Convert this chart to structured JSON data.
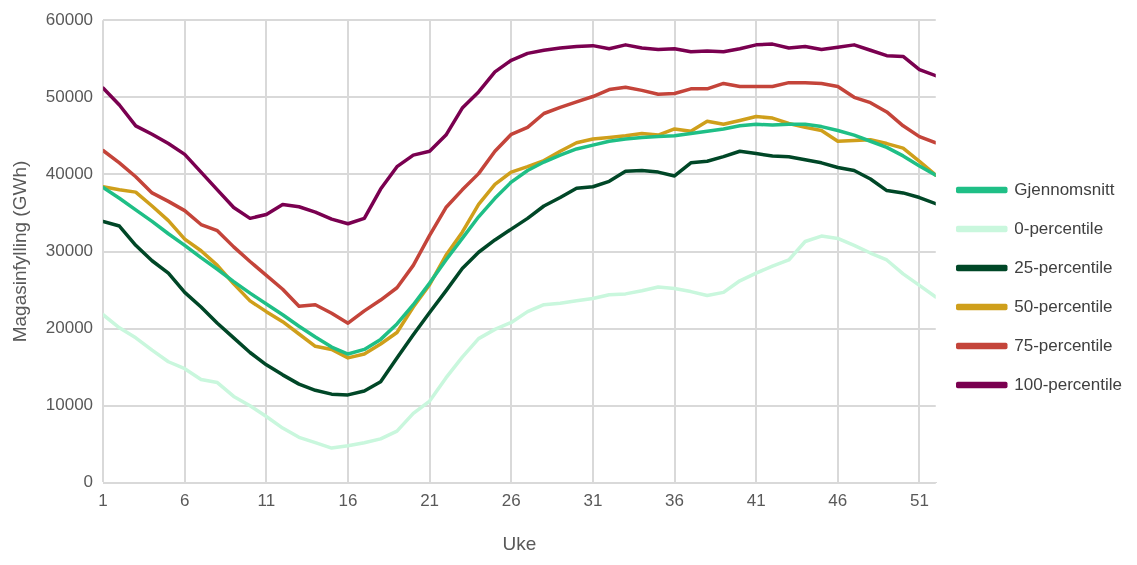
{
  "chart_data": {
    "type": "line",
    "xlabel": "Uke",
    "ylabel": "Magasinfylling (GWh)",
    "x": [
      1,
      2,
      3,
      4,
      5,
      6,
      7,
      8,
      9,
      10,
      11,
      12,
      13,
      14,
      15,
      16,
      17,
      18,
      19,
      20,
      21,
      22,
      23,
      24,
      25,
      26,
      27,
      28,
      29,
      30,
      31,
      32,
      33,
      34,
      35,
      36,
      37,
      38,
      39,
      40,
      41,
      42,
      43,
      44,
      45,
      46,
      47,
      48,
      49,
      50,
      51,
      52
    ],
    "xlim": [
      1,
      52
    ],
    "xticks": [
      1,
      6,
      11,
      16,
      21,
      26,
      31,
      36,
      41,
      46,
      51
    ],
    "ylim": [
      0,
      60000
    ],
    "yticks": [
      0,
      10000,
      20000,
      30000,
      40000,
      50000,
      60000
    ],
    "grid": true,
    "legend": "right",
    "marker": "none",
    "line_style": "solid",
    "series": [
      {
        "name": "Gjennomsnitt",
        "color": "#1fbf86",
        "values": [
          38300,
          36900,
          35400,
          33900,
          32300,
          30800,
          29200,
          27700,
          26100,
          24600,
          23200,
          21800,
          20300,
          18900,
          17600,
          16700,
          17300,
          18600,
          20600,
          23100,
          25900,
          28900,
          31700,
          34500,
          36900,
          39000,
          40500,
          41600,
          42500,
          43300,
          43800,
          44300,
          44600,
          44800,
          44900,
          45000,
          45300,
          45600,
          45900,
          46300,
          46500,
          46400,
          46500,
          46500,
          46200,
          45700,
          45100,
          44300,
          43500,
          42400,
          41100,
          39900
        ]
      },
      {
        "name": "0-percentile",
        "color": "#c9f7dd",
        "values": [
          21800,
          20100,
          18800,
          17200,
          15700,
          14800,
          13400,
          13000,
          11200,
          10000,
          8600,
          7100,
          5900,
          5200,
          4500,
          4800,
          5200,
          5700,
          6700,
          9000,
          10600,
          13600,
          16300,
          18700,
          19900,
          20800,
          22200,
          23100,
          23300,
          23600,
          23900,
          24400,
          24500,
          24900,
          25400,
          25200,
          24800,
          24300,
          24700,
          26200,
          27200,
          28100,
          28900,
          31300,
          32000,
          31700,
          30800,
          29800,
          28900,
          27100,
          25600,
          24100
        ]
      },
      {
        "name": "25-percentile",
        "color": "#004727",
        "values": [
          33900,
          33300,
          30800,
          28800,
          27200,
          24700,
          22800,
          20700,
          18800,
          16900,
          15300,
          14000,
          12800,
          12000,
          11500,
          11400,
          11900,
          13100,
          16200,
          19200,
          22100,
          24900,
          27800,
          29900,
          31500,
          32900,
          34300,
          35900,
          37000,
          38200,
          38400,
          39100,
          40400,
          40500,
          40300,
          39800,
          41500,
          41700,
          42300,
          43000,
          42700,
          42400,
          42300,
          41900,
          41500,
          40900,
          40500,
          39400,
          37900,
          37600,
          37000,
          36200
        ]
      },
      {
        "name": "50-percentile",
        "color": "#cf9f1b",
        "values": [
          38400,
          38000,
          37700,
          35900,
          34000,
          31600,
          30100,
          28200,
          25800,
          23600,
          22200,
          20900,
          19300,
          17700,
          17300,
          16200,
          16700,
          18000,
          19500,
          22800,
          25700,
          29500,
          32500,
          36100,
          38700,
          40300,
          41000,
          41800,
          43000,
          44100,
          44600,
          44800,
          45000,
          45300,
          45100,
          45900,
          45600,
          46900,
          46500,
          47000,
          47500,
          47300,
          46600,
          46100,
          45700,
          44300,
          44400,
          44500,
          44000,
          43400,
          41700,
          39900
        ]
      },
      {
        "name": "75-percentile",
        "color": "#c4443a",
        "values": [
          43100,
          41500,
          39700,
          37600,
          36500,
          35300,
          33500,
          32700,
          30600,
          28700,
          26900,
          25100,
          22900,
          23100,
          22000,
          20700,
          22300,
          23700,
          25300,
          28200,
          32100,
          35700,
          38000,
          40100,
          43000,
          45200,
          46100,
          47900,
          48700,
          49400,
          50100,
          51000,
          51300,
          50900,
          50400,
          50500,
          51100,
          51100,
          51800,
          51400,
          51400,
          51400,
          51900,
          51900,
          51800,
          51400,
          50000,
          49300,
          48100,
          46300,
          44900,
          44100
        ]
      },
      {
        "name": "100-percentile",
        "color": "#7a0050",
        "values": [
          51200,
          49000,
          46300,
          45200,
          44000,
          42600,
          40300,
          38000,
          35700,
          34300,
          34800,
          36100,
          35800,
          35100,
          34200,
          33600,
          34300,
          38100,
          41000,
          42500,
          43000,
          45100,
          48600,
          50700,
          53300,
          54800,
          55700,
          56100,
          56400,
          56600,
          56700,
          56300,
          56800,
          56400,
          56200,
          56300,
          55900,
          56000,
          55900,
          56300,
          56800,
          56900,
          56400,
          56600,
          56200,
          56500,
          56800,
          56100,
          55400,
          55300,
          53600,
          52800
        ]
      }
    ]
  }
}
